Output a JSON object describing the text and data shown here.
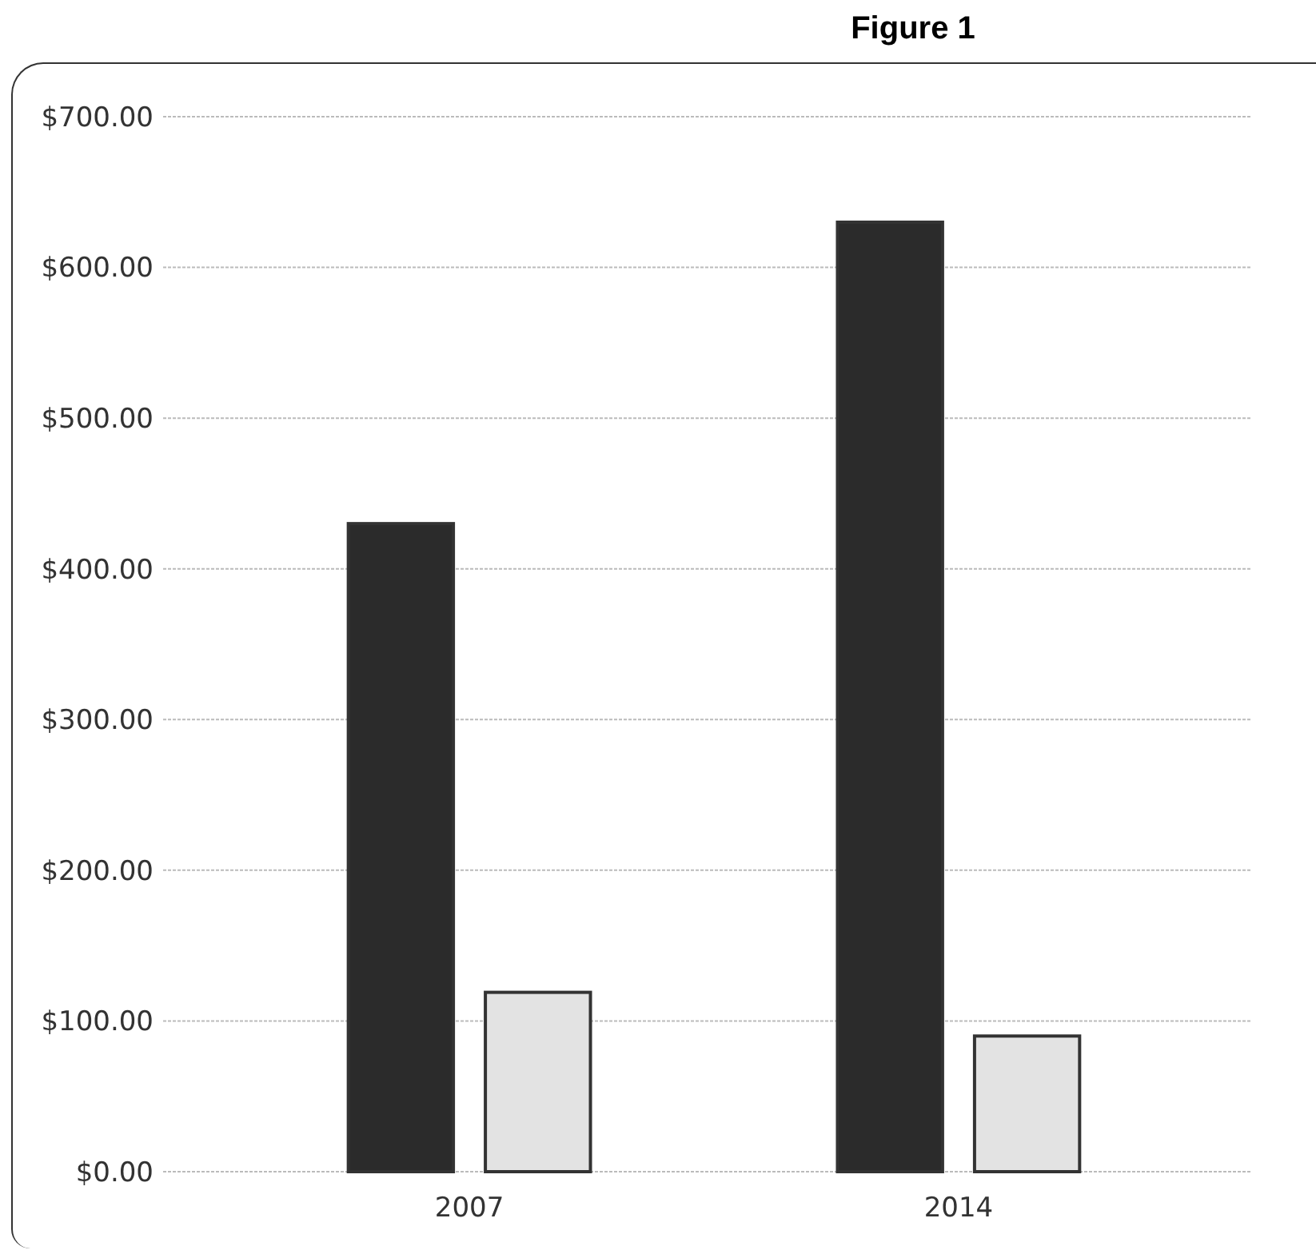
{
  "chart_data": {
    "type": "bar",
    "title": "Figure 1",
    "categories": [
      "2007",
      "2014"
    ],
    "series": [
      {
        "color": "#2b2b2b",
        "values": [
          430,
          630
        ]
      },
      {
        "color": "#e3e3e3",
        "values": [
          119,
          90
        ]
      }
    ],
    "ylim": [
      0,
      700
    ],
    "yticks": [
      {
        "value": 0,
        "label": "$0.00"
      },
      {
        "value": 100,
        "label": "$100.00"
      },
      {
        "value": 200,
        "label": "$200.00"
      },
      {
        "value": 300,
        "label": "$300.00"
      },
      {
        "value": 400,
        "label": "$400.00"
      },
      {
        "value": 500,
        "label": "$500.00"
      },
      {
        "value": 600,
        "label": "$600.00"
      },
      {
        "value": 700,
        "label": "$700.00"
      }
    ],
    "grid": "y"
  }
}
